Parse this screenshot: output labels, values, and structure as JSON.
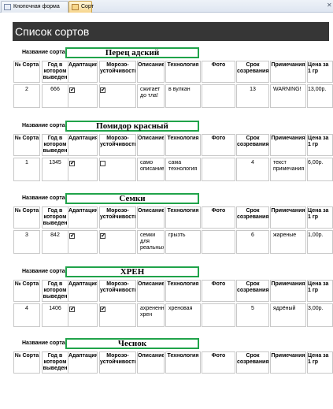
{
  "tabs": [
    {
      "label": "Кнопочная форма",
      "icon": "form-icon",
      "active": false
    },
    {
      "label": "Сорт",
      "icon": "form-icon",
      "active": true
    }
  ],
  "header": {
    "title": "Список сортов"
  },
  "name_label": "Название сорта",
  "columns": {
    "num": "№ Сорта",
    "year": "Год в котором выведен",
    "adapt": "Адаптация",
    "frost": "Морозо-устойчивость",
    "desc": "Описание",
    "tech": "Технология",
    "photo": "Фото",
    "term": "Срок созревания",
    "notes": "Примечания",
    "price": "Цена за 1 гр"
  },
  "records": [
    {
      "name": "Перец адский",
      "num": "2",
      "year": "666",
      "adapt": true,
      "frost": true,
      "desc": "сжигает до тла!",
      "tech": "в вулкан",
      "term": "13",
      "notes": "WARNING!",
      "price": "13,00р."
    },
    {
      "name": "Помидор красный",
      "num": "1",
      "year": "1345",
      "adapt": true,
      "frost": false,
      "desc": "само описание",
      "tech": "сама технология",
      "term": "4",
      "notes": "текст примечания",
      "price": "6,00р."
    },
    {
      "name": "Семки",
      "num": "3",
      "year": "842",
      "adapt": true,
      "frost": true,
      "desc": "семки для реальных",
      "tech": "грызть",
      "term": "6",
      "notes": "жареные",
      "price": "1,00р."
    },
    {
      "name": "ХРЕН",
      "num": "4",
      "year": "1406",
      "adapt": true,
      "frost": true,
      "desc": "ахрененный хрен",
      "tech": "хреновая",
      "term": "5",
      "notes": "ядрёный",
      "price": "3,00р."
    },
    {
      "name": "Чеснок",
      "num": "",
      "year": "",
      "adapt": false,
      "frost": false,
      "desc": "",
      "tech": "",
      "term": "",
      "notes": "",
      "price": ""
    }
  ]
}
